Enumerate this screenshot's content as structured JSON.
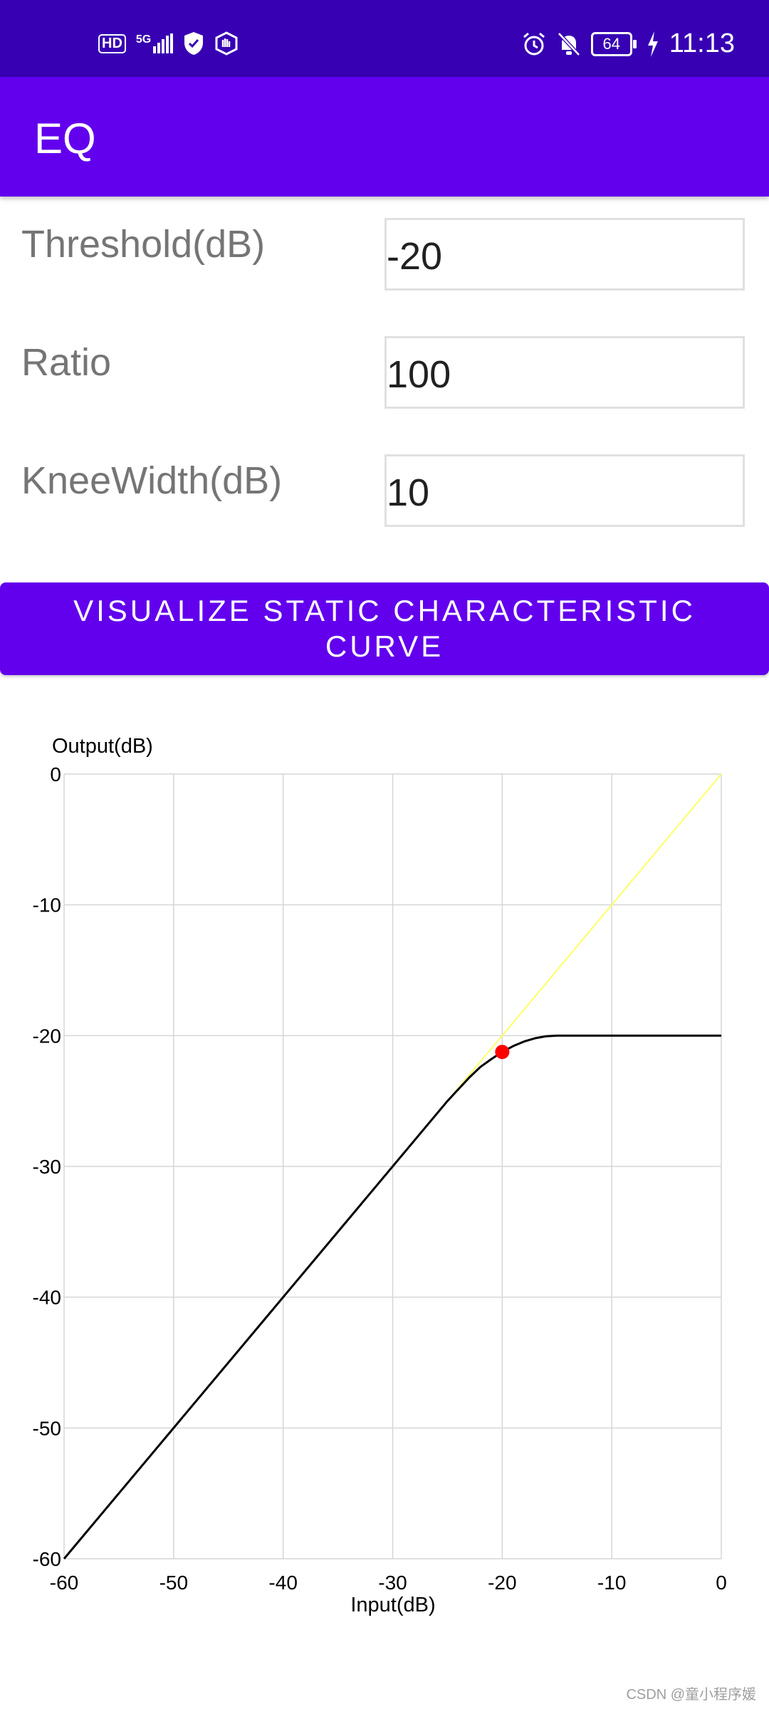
{
  "status_bar": {
    "left_icons": [
      "hd-icon",
      "5g-signal-icon",
      "shield-check-icon",
      "hand-icon"
    ],
    "hd_text": "HD",
    "network_text": "5G",
    "battery_level": "64",
    "time": "11:13",
    "right_icons": [
      "alarm-icon",
      "bell-off-icon",
      "battery-icon",
      "charging-bolt-icon"
    ]
  },
  "app_bar": {
    "title": "EQ"
  },
  "form": {
    "threshold_label": "Threshold(dB)",
    "threshold_value": "-20",
    "ratio_label": "Ratio",
    "ratio_value": "100",
    "knee_label": "KneeWidth(dB)",
    "knee_value": "10"
  },
  "button": {
    "label": "VISUALIZE STATIC CHARACTERISTIC CURVE"
  },
  "chart_data": {
    "type": "line",
    "xlabel": "Input(dB)",
    "ylabel": "Output(dB)",
    "xlim": [
      -60,
      0
    ],
    "ylim": [
      -60,
      0
    ],
    "x_ticks": [
      "-60",
      "-50",
      "-40",
      "-30",
      "-20",
      "-10",
      "0"
    ],
    "y_ticks": [
      "0",
      "-10",
      "-20",
      "-30",
      "-40",
      "-50",
      "-60"
    ],
    "grid": true,
    "series": [
      {
        "color": "#ffff66",
        "x": [
          -25,
          0
        ],
        "y": [
          -25,
          0
        ]
      },
      {
        "color": "#000000",
        "x": [
          -60,
          -25,
          -24,
          -23,
          -22,
          -21,
          -20,
          -19,
          -18,
          -17,
          -16,
          -15,
          -10,
          0
        ],
        "y": [
          -60,
          -25,
          -24.1,
          -23.2,
          -22.4,
          -21.8,
          -21.25,
          -20.8,
          -20.45,
          -20.2,
          -20.05,
          -20,
          -20,
          -20
        ]
      }
    ],
    "marker": {
      "x": -20,
      "y": -21.25,
      "color": "#ff0000"
    }
  },
  "watermark": "CSDN @童小程序媛"
}
